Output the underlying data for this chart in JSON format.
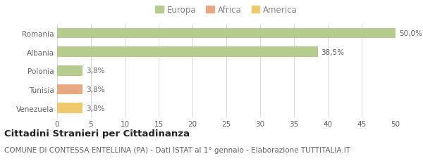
{
  "categories": [
    "Romania",
    "Albania",
    "Polonia",
    "Tunisia",
    "Venezuela"
  ],
  "values": [
    50.0,
    38.5,
    3.8,
    3.8,
    3.8
  ],
  "labels": [
    "50,0%",
    "38,5%",
    "3,8%",
    "3,8%",
    "3,8%"
  ],
  "bar_colors": [
    "#b5cc8e",
    "#b5cc8e",
    "#b5cc8e",
    "#e8a882",
    "#f0c96e"
  ],
  "legend_items": [
    {
      "label": "Europa",
      "color": "#b5cc8e"
    },
    {
      "label": "Africa",
      "color": "#e8a882"
    },
    {
      "label": "America",
      "color": "#f0c96e"
    }
  ],
  "xlim": [
    0,
    50
  ],
  "xticks": [
    0,
    5,
    10,
    15,
    20,
    25,
    30,
    35,
    40,
    45,
    50
  ],
  "title": "Cittadini Stranieri per Cittadinanza",
  "subtitle": "COMUNE DI CONTESSA ENTELLINA (PA) - Dati ISTAT al 1° gennaio - Elaborazione TUTTITALIA.IT",
  "background_color": "#ffffff",
  "grid_color": "#dddddd",
  "bar_height": 0.55,
  "title_fontsize": 9.5,
  "subtitle_fontsize": 7.5,
  "label_fontsize": 7.5,
  "tick_fontsize": 7.5,
  "legend_fontsize": 8.5
}
